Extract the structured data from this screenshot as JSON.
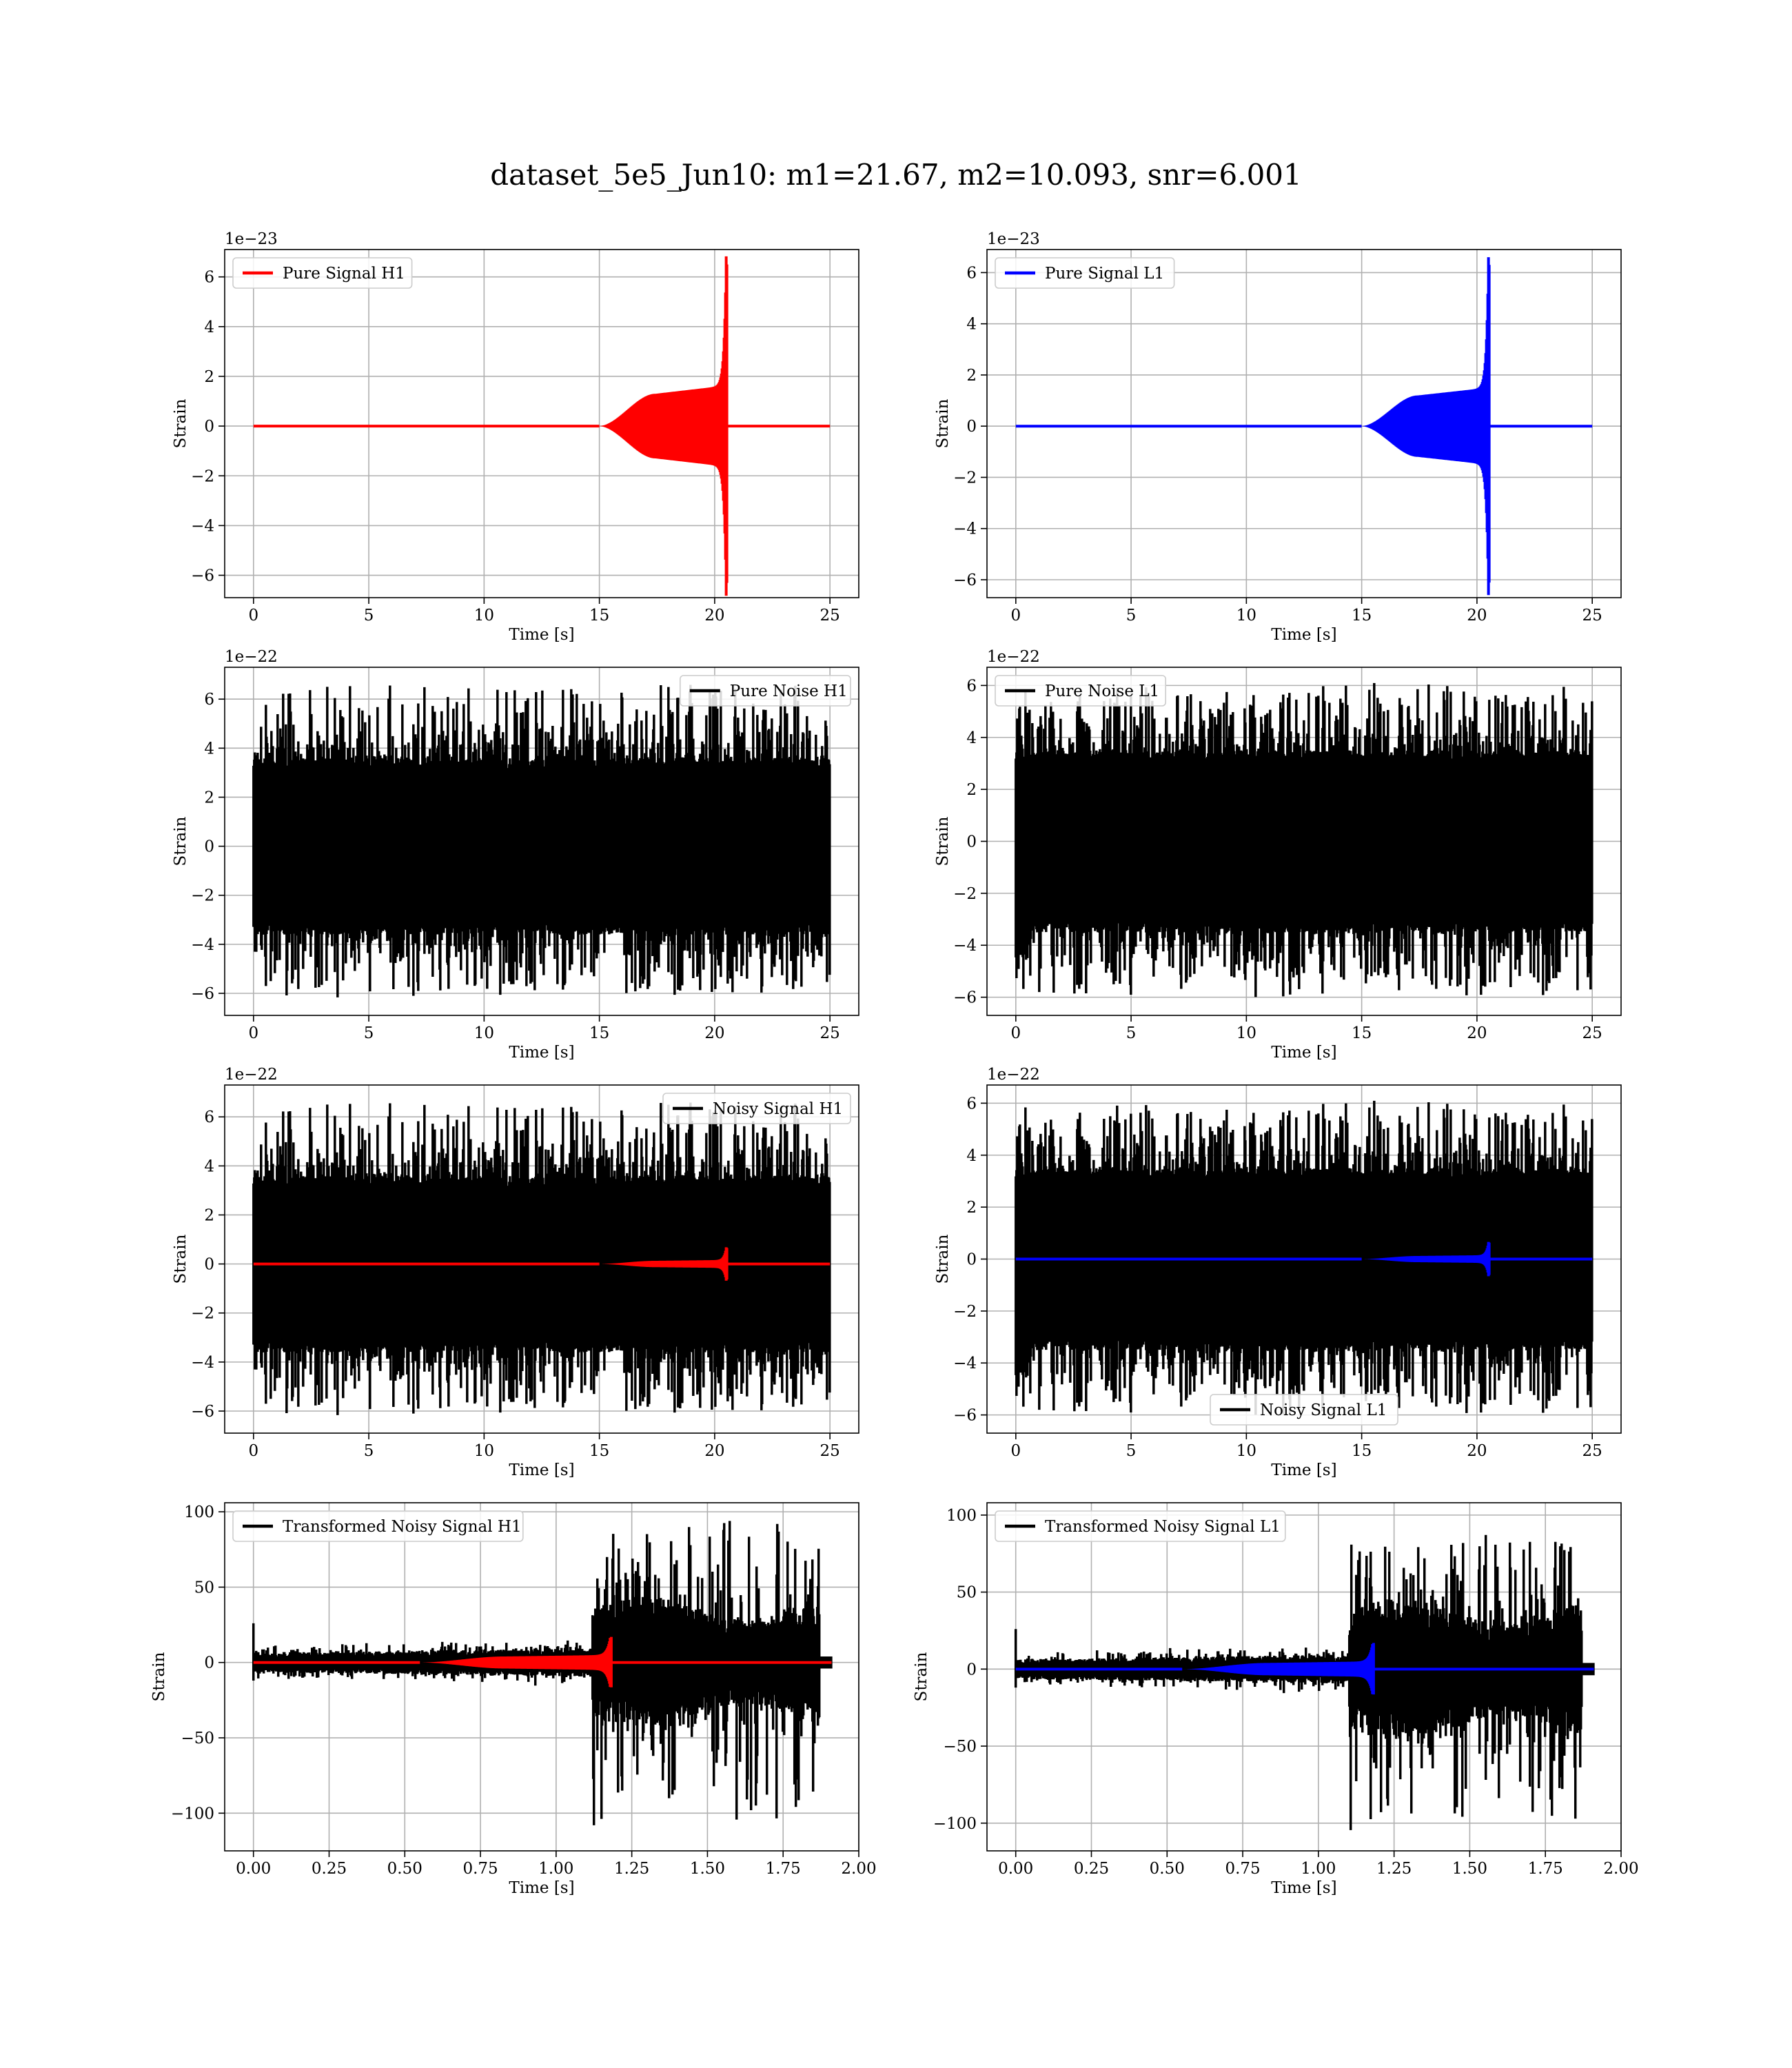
{
  "figure": {
    "suptitle": "dataset_5e5_Jun10: m1=21.67, m2=10.093, snr=6.001"
  },
  "colors": {
    "h1": "#ff0000",
    "l1": "#0000ff",
    "noise": "#000000"
  },
  "chart_data": [
    {
      "type": "line",
      "id": "pure-signal-h1",
      "xlabel": "Time [s]",
      "ylabel": "Strain",
      "offset_text": "1e−23",
      "xlim": [
        -1.25,
        26.25
      ],
      "ylim": [
        -6.9,
        7.1
      ],
      "xticks": [
        0,
        5,
        10,
        15,
        20,
        25
      ],
      "xtick_labels": [
        "0",
        "5",
        "10",
        "15",
        "20",
        "25"
      ],
      "yticks": [
        -6,
        -4,
        -2,
        0,
        2,
        4,
        6
      ],
      "ytick_labels": [
        "−6",
        "−4",
        "−2",
        "0",
        "2",
        "4",
        "6"
      ],
      "grid": true,
      "legend": "upper left",
      "series": [
        {
          "name": "Pure Signal H1",
          "color": "#ff0000",
          "kind": "chirp",
          "t_start": 0,
          "t_end": 25,
          "t_onset": 15.0,
          "t_merge": 20.5,
          "plateau": 1.3,
          "peak": 6.5
        }
      ]
    },
    {
      "type": "line",
      "id": "pure-signal-l1",
      "xlabel": "Time [s]",
      "ylabel": "Strain",
      "offset_text": "1e−23",
      "xlim": [
        -1.25,
        26.25
      ],
      "ylim": [
        -6.7,
        6.9
      ],
      "xticks": [
        0,
        5,
        10,
        15,
        20,
        25
      ],
      "xtick_labels": [
        "0",
        "5",
        "10",
        "15",
        "20",
        "25"
      ],
      "yticks": [
        -6,
        -4,
        -2,
        0,
        2,
        4,
        6
      ],
      "ytick_labels": [
        "−6",
        "−4",
        "−2",
        "0",
        "2",
        "4",
        "6"
      ],
      "grid": true,
      "legend": "upper left",
      "series": [
        {
          "name": "Pure Signal L1",
          "color": "#0000ff",
          "kind": "chirp",
          "t_start": 0,
          "t_end": 25,
          "t_onset": 15.0,
          "t_merge": 20.5,
          "plateau": 1.2,
          "peak": 6.3
        }
      ]
    },
    {
      "type": "line",
      "id": "pure-noise-h1",
      "xlabel": "Time [s]",
      "ylabel": "Strain",
      "offset_text": "1e−22",
      "xlim": [
        -1.25,
        26.25
      ],
      "ylim": [
        -6.9,
        7.3
      ],
      "xticks": [
        0,
        5,
        10,
        15,
        20,
        25
      ],
      "xtick_labels": [
        "0",
        "5",
        "10",
        "15",
        "20",
        "25"
      ],
      "yticks": [
        -6,
        -4,
        -2,
        0,
        2,
        4,
        6
      ],
      "ytick_labels": [
        "−6",
        "−4",
        "−2",
        "0",
        "2",
        "4",
        "6"
      ],
      "grid": true,
      "legend": "upper right",
      "series": [
        {
          "name": "Pure Noise H1",
          "color": "#000000",
          "kind": "noise",
          "t_start": 0,
          "t_end": 25,
          "band": 3.6,
          "max": 6.7,
          "min": -6.3,
          "seed": 11
        }
      ]
    },
    {
      "type": "line",
      "id": "pure-noise-l1",
      "xlabel": "Time [s]",
      "ylabel": "Strain",
      "offset_text": "1e−22",
      "xlim": [
        -1.25,
        26.25
      ],
      "ylim": [
        -6.7,
        6.7
      ],
      "xticks": [
        0,
        5,
        10,
        15,
        20,
        25
      ],
      "xtick_labels": [
        "0",
        "5",
        "10",
        "15",
        "20",
        "25"
      ],
      "yticks": [
        -6,
        -4,
        -2,
        0,
        2,
        4,
        6
      ],
      "ytick_labels": [
        "−6",
        "−4",
        "−2",
        "0",
        "2",
        "4",
        "6"
      ],
      "grid": true,
      "legend": "upper left",
      "series": [
        {
          "name": "Pure Noise L1",
          "color": "#000000",
          "kind": "noise",
          "t_start": 0,
          "t_end": 25,
          "band": 3.5,
          "max": 6.2,
          "min": -6.1,
          "seed": 23
        }
      ]
    },
    {
      "type": "line",
      "id": "noisy-signal-h1",
      "xlabel": "Time [s]",
      "ylabel": "Strain",
      "offset_text": "1e−22",
      "xlim": [
        -1.25,
        26.25
      ],
      "ylim": [
        -6.9,
        7.3
      ],
      "xticks": [
        0,
        5,
        10,
        15,
        20,
        25
      ],
      "xtick_labels": [
        "0",
        "5",
        "10",
        "15",
        "20",
        "25"
      ],
      "yticks": [
        -6,
        -4,
        -2,
        0,
        2,
        4,
        6
      ],
      "ytick_labels": [
        "−6",
        "−4",
        "−2",
        "0",
        "2",
        "4",
        "6"
      ],
      "grid": true,
      "legend": "upper right",
      "series": [
        {
          "name": "Noisy Signal H1",
          "color": "#000000",
          "kind": "noise",
          "t_start": 0,
          "t_end": 25,
          "band": 3.6,
          "max": 6.7,
          "min": -6.3,
          "seed": 11
        },
        {
          "name": "",
          "color": "#ff0000",
          "kind": "chirp",
          "t_start": 0,
          "t_end": 25,
          "t_onset": 15.0,
          "t_merge": 20.5,
          "plateau": 0.13,
          "peak": 0.65
        }
      ]
    },
    {
      "type": "line",
      "id": "noisy-signal-l1",
      "xlabel": "Time [s]",
      "ylabel": "Strain",
      "offset_text": "1e−22",
      "xlim": [
        -1.25,
        26.25
      ],
      "ylim": [
        -6.7,
        6.7
      ],
      "xticks": [
        0,
        5,
        10,
        15,
        20,
        25
      ],
      "xtick_labels": [
        "0",
        "5",
        "10",
        "15",
        "20",
        "25"
      ],
      "yticks": [
        -6,
        -4,
        -2,
        0,
        2,
        4,
        6
      ],
      "ytick_labels": [
        "−6",
        "−4",
        "−2",
        "0",
        "2",
        "4",
        "6"
      ],
      "grid": true,
      "legend": "lower center",
      "series": [
        {
          "name": "Noisy Signal L1",
          "color": "#000000",
          "kind": "noise",
          "t_start": 0,
          "t_end": 25,
          "band": 3.5,
          "max": 6.2,
          "min": -6.1,
          "seed": 23
        },
        {
          "name": "",
          "color": "#0000ff",
          "kind": "chirp",
          "t_start": 0,
          "t_end": 25,
          "t_onset": 15.0,
          "t_merge": 20.5,
          "plateau": 0.12,
          "peak": 0.63
        }
      ]
    },
    {
      "type": "line",
      "id": "transformed-noisy-signal-h1",
      "xlabel": "Time [s]",
      "ylabel": "Strain",
      "offset_text": "",
      "xlim": [
        -0.095,
        2.0
      ],
      "ylim": [
        -125,
        106
      ],
      "xticks": [
        0,
        0.25,
        0.5,
        0.75,
        1.0,
        1.25,
        1.5,
        1.75,
        2.0
      ],
      "xtick_labels": [
        "0.00",
        "0.25",
        "0.50",
        "0.75",
        "1.00",
        "1.25",
        "1.50",
        "1.75",
        "2.00"
      ],
      "yticks": [
        -100,
        -50,
        0,
        50,
        100
      ],
      "ytick_labels": [
        "−100",
        "−50",
        "0",
        "50",
        "100"
      ],
      "grid": true,
      "legend": "upper left",
      "series": [
        {
          "name": "Transformed Noisy Signal H1",
          "color": "#000000",
          "kind": "whitened",
          "t_start": 0,
          "t_end": 1.91,
          "t_jump": 1.12,
          "t_cut": 1.87,
          "band_low": 7,
          "band_high": 40,
          "max": 97,
          "min": -110,
          "seed": 37
        },
        {
          "name": "",
          "color": "#ff0000",
          "kind": "chirp",
          "t_start": 0,
          "t_end": 1.91,
          "t_onset": 0.55,
          "t_merge": 1.18,
          "plateau": 4,
          "peak": 17
        }
      ]
    },
    {
      "type": "line",
      "id": "transformed-noisy-signal-l1",
      "xlabel": "Time [s]",
      "ylabel": "Strain",
      "offset_text": "",
      "xlim": [
        -0.095,
        2.0
      ],
      "ylim": [
        -118,
        108
      ],
      "xticks": [
        0,
        0.25,
        0.5,
        0.75,
        1.0,
        1.25,
        1.5,
        1.75,
        2.0
      ],
      "xtick_labels": [
        "0.00",
        "0.25",
        "0.50",
        "0.75",
        "1.00",
        "1.25",
        "1.50",
        "1.75",
        "2.00"
      ],
      "yticks": [
        -100,
        -50,
        0,
        50,
        100
      ],
      "ytick_labels": [
        "−100",
        "−50",
        "0",
        "50",
        "100"
      ],
      "grid": true,
      "legend": "upper left",
      "series": [
        {
          "name": "Transformed Noisy Signal L1",
          "color": "#000000",
          "kind": "whitened",
          "t_start": 0,
          "t_end": 1.91,
          "t_jump": 1.1,
          "t_cut": 1.87,
          "band_low": 7,
          "band_high": 42,
          "max": 96,
          "min": -110,
          "seed": 53
        },
        {
          "name": "",
          "color": "#0000ff",
          "kind": "chirp",
          "t_start": 0,
          "t_end": 1.91,
          "t_onset": 0.55,
          "t_merge": 1.18,
          "plateau": 4,
          "peak": 17
        }
      ]
    }
  ]
}
